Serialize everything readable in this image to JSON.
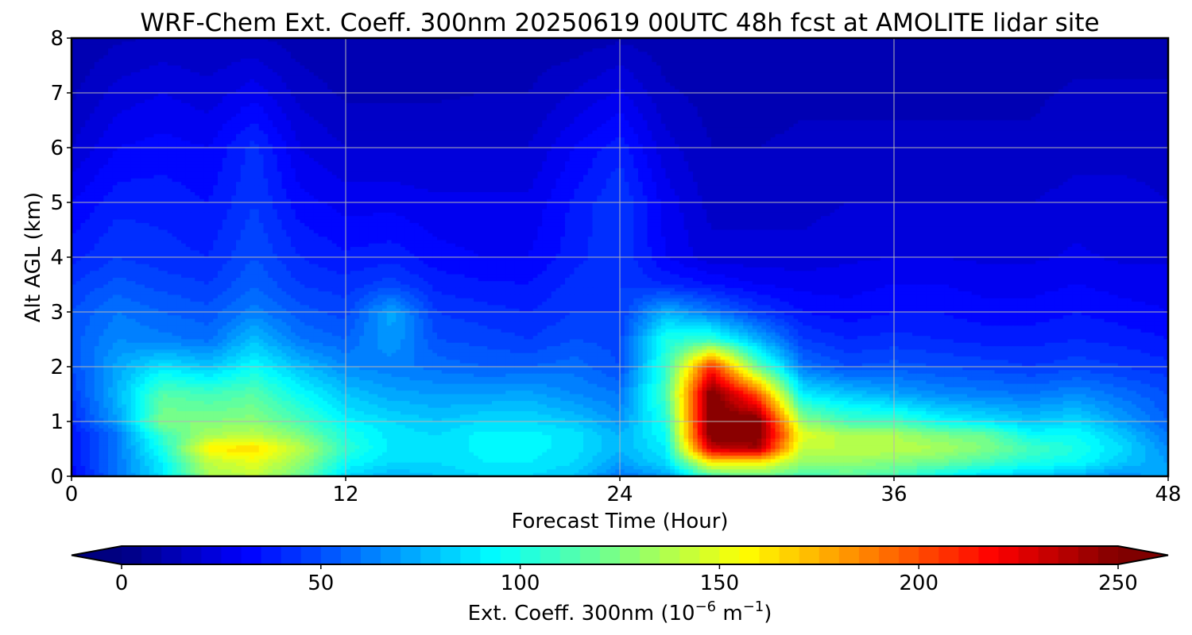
{
  "chart_data": {
    "type": "heatmap",
    "title": "WRF-Chem Ext. Coeff. 300nm  20250619 00UTC 48h fcst at AMOLITE lidar site",
    "xlabel": "Forecast Time (Hour)",
    "ylabel": "Alt AGL (km)",
    "xlim": [
      0,
      48
    ],
    "ylim": [
      0,
      8
    ],
    "xticks": [
      "0",
      "12",
      "24",
      "36",
      "48"
    ],
    "yticks": [
      "0",
      "1",
      "2",
      "3",
      "4",
      "5",
      "6",
      "7",
      "8"
    ],
    "grid": true,
    "colormap": "jet",
    "colorbar": {
      "label_main": "Ext. Coeff. 300nm  (10",
      "label_exp1": "−6",
      "label_mid": " m",
      "label_exp2": "−1",
      "label_end": ")",
      "ticks": [
        "0",
        "50",
        "100",
        "150",
        "200",
        "250"
      ],
      "range": [
        0,
        250
      ],
      "extend": "both",
      "orientation": "horizontal"
    },
    "x_hours": [
      0,
      2,
      4,
      6,
      8,
      10,
      12,
      14,
      16,
      18,
      20,
      22,
      24,
      26,
      28,
      30,
      32,
      34,
      36,
      38,
      40,
      42,
      44,
      46,
      48
    ],
    "y_km": [
      0,
      0.25,
      0.5,
      0.75,
      1,
      1.5,
      2,
      2.5,
      3,
      3.5,
      4,
      5,
      6,
      7,
      8
    ],
    "values": [
      [
        30,
        60,
        88,
        135,
        140,
        120,
        85,
        75,
        80,
        85,
        85,
        80,
        60,
        70,
        110,
        120,
        110,
        115,
        110,
        95,
        85,
        80,
        75,
        65,
        75
      ],
      [
        35,
        60,
        92,
        140,
        150,
        130,
        95,
        85,
        85,
        90,
        90,
        85,
        70,
        85,
        160,
        160,
        130,
        130,
        125,
        120,
        110,
        100,
        95,
        80,
        70
      ],
      [
        35,
        60,
        100,
        160,
        165,
        140,
        105,
        88,
        85,
        92,
        92,
        88,
        75,
        90,
        230,
        240,
        140,
        140,
        140,
        135,
        125,
        110,
        100,
        85,
        65
      ],
      [
        35,
        60,
        108,
        135,
        140,
        125,
        100,
        88,
        85,
        92,
        92,
        88,
        75,
        95,
        255,
        255,
        150,
        135,
        135,
        125,
        120,
        95,
        95,
        80,
        60
      ],
      [
        40,
        70,
        125,
        125,
        128,
        112,
        92,
        85,
        80,
        85,
        85,
        80,
        68,
        100,
        255,
        255,
        130,
        110,
        110,
        95,
        88,
        80,
        85,
        70,
        55
      ],
      [
        45,
        75,
        115,
        110,
        115,
        95,
        80,
        72,
        70,
        70,
        72,
        65,
        60,
        110,
        255,
        200,
        90,
        80,
        72,
        65,
        62,
        60,
        65,
        58,
        50
      ],
      [
        50,
        72,
        88,
        80,
        95,
        78,
        65,
        62,
        58,
        55,
        55,
        58,
        50,
        105,
        210,
        120,
        60,
        50,
        52,
        50,
        48,
        45,
        48,
        45,
        42
      ],
      [
        52,
        65,
        62,
        58,
        78,
        60,
        55,
        70,
        50,
        48,
        45,
        50,
        48,
        100,
        105,
        75,
        45,
        40,
        42,
        40,
        38,
        38,
        40,
        38,
        35
      ],
      [
        50,
        60,
        55,
        52,
        62,
        52,
        48,
        72,
        45,
        42,
        40,
        45,
        45,
        75,
        60,
        45,
        35,
        32,
        35,
        35,
        32,
        32,
        35,
        32,
        30
      ],
      [
        45,
        52,
        48,
        45,
        55,
        45,
        42,
        48,
        38,
        36,
        35,
        42,
        45,
        40,
        35,
        30,
        28,
        28,
        30,
        30,
        28,
        28,
        30,
        28,
        28
      ],
      [
        38,
        45,
        42,
        40,
        50,
        40,
        36,
        38,
        32,
        30,
        30,
        38,
        45,
        30,
        22,
        22,
        22,
        24,
        25,
        25,
        24,
        24,
        26,
        24,
        24
      ],
      [
        30,
        38,
        38,
        35,
        45,
        32,
        28,
        28,
        26,
        26,
        26,
        36,
        45,
        28,
        18,
        18,
        18,
        20,
        20,
        20,
        20,
        20,
        22,
        22,
        20
      ],
      [
        20,
        30,
        32,
        30,
        42,
        25,
        20,
        20,
        20,
        20,
        20,
        30,
        38,
        22,
        15,
        15,
        16,
        16,
        16,
        16,
        16,
        16,
        18,
        18,
        18
      ],
      [
        14,
        22,
        25,
        22,
        28,
        18,
        14,
        14,
        14,
        15,
        15,
        20,
        26,
        16,
        13,
        13,
        14,
        14,
        14,
        14,
        14,
        14,
        16,
        16,
        16
      ],
      [
        10,
        14,
        16,
        15,
        16,
        12,
        10,
        10,
        10,
        11,
        12,
        12,
        14,
        12,
        10,
        10,
        11,
        11,
        11,
        11,
        11,
        11,
        12,
        12,
        12
      ]
    ]
  }
}
